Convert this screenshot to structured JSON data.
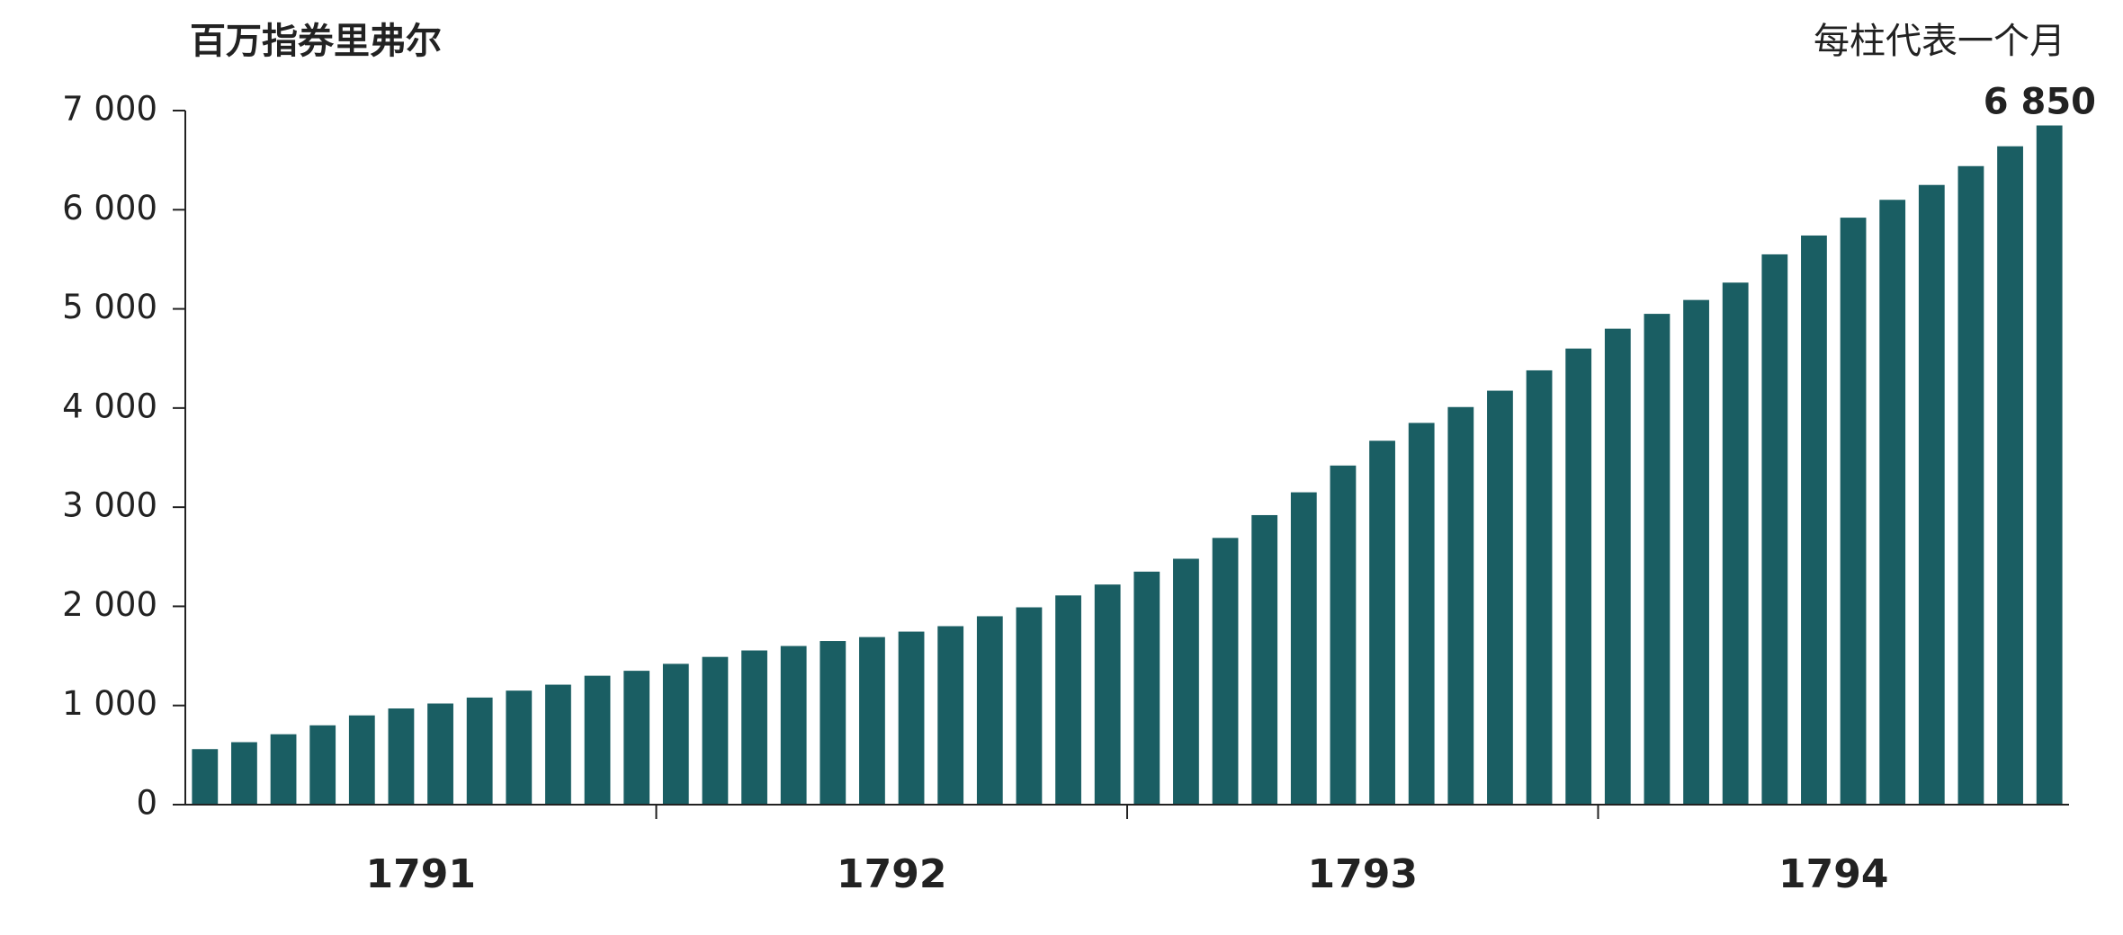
{
  "chart_data": {
    "type": "bar",
    "title": "百万指券里弗尔",
    "subtitle": "每柱代表一个月",
    "categories": [
      null,
      null,
      null,
      null,
      null,
      null,
      null,
      null,
      null,
      null,
      null,
      null,
      null,
      null,
      null,
      null,
      null,
      null,
      null,
      null,
      null,
      null,
      null,
      null,
      null,
      null,
      null,
      null,
      null,
      null,
      null,
      null,
      null,
      null,
      null,
      null,
      null,
      null,
      null,
      null,
      null,
      null,
      null,
      null,
      null,
      null,
      null,
      null
    ],
    "groups": [
      "1791",
      "1792",
      "1793",
      "1794"
    ],
    "values": [
      560,
      630,
      710,
      800,
      900,
      970,
      1020,
      1080,
      1150,
      1210,
      1300,
      1350,
      1420,
      1490,
      1555,
      1600,
      1650,
      1690,
      1745,
      1800,
      1900,
      1990,
      2110,
      2220,
      2350,
      2480,
      2690,
      2920,
      3150,
      3420,
      3670,
      3850,
      4010,
      4175,
      4380,
      4600,
      4800,
      4950,
      5090,
      5265,
      5550,
      5740,
      5920,
      6100,
      6250,
      6440,
      6640,
      6850
    ],
    "value_labels": [
      null,
      null,
      null,
      null,
      null,
      null,
      null,
      null,
      null,
      null,
      null,
      null,
      null,
      null,
      null,
      null,
      null,
      null,
      null,
      null,
      null,
      null,
      null,
      null,
      null,
      null,
      null,
      null,
      null,
      null,
      null,
      null,
      null,
      null,
      null,
      null,
      null,
      null,
      null,
      null,
      null,
      null,
      null,
      null,
      null,
      null,
      null,
      "6 850"
    ],
    "color": "#1a5e63",
    "ylim": [
      0,
      7000
    ],
    "yticks": [
      0,
      {
        "value": 1000,
        "label": "1 000"
      },
      {
        "value": 2000,
        "label": "2 000"
      },
      {
        "value": 3000,
        "label": "3 000"
      },
      {
        "value": 4000,
        "label": "4 000"
      },
      {
        "value": 5000,
        "label": "5 000"
      },
      {
        "value": 6000,
        "label": "6 000"
      },
      {
        "value": 7000,
        "label": "7 000"
      }
    ],
    "grid": false
  }
}
